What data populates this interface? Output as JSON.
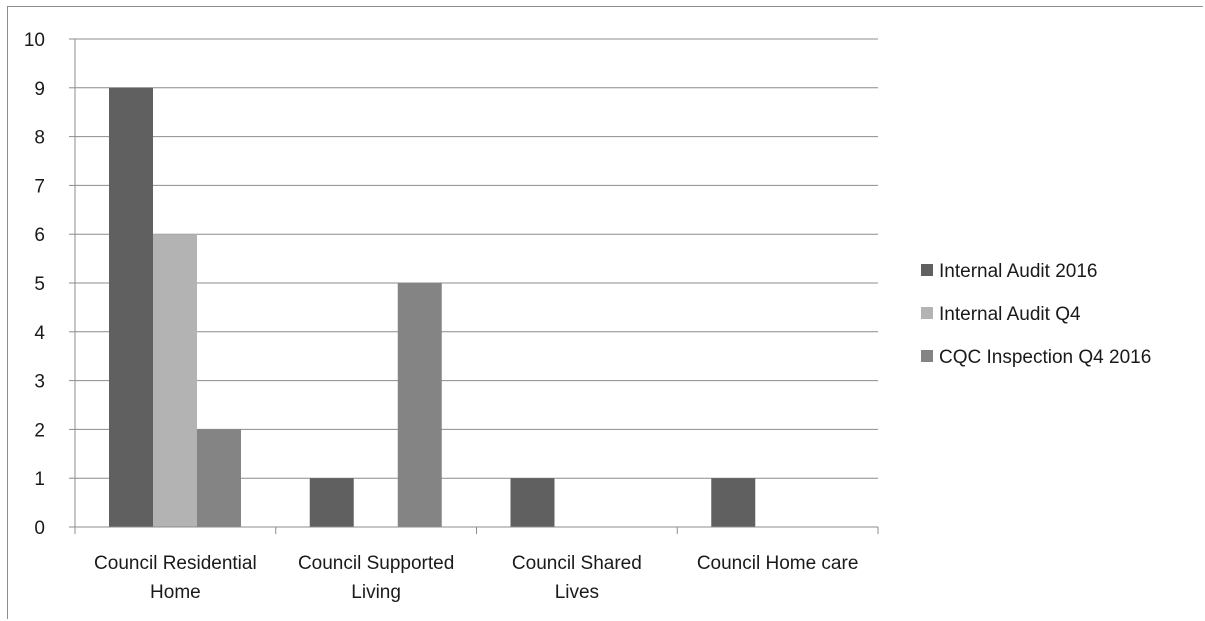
{
  "chart_data": {
    "type": "bar",
    "categories": [
      [
        "Council Residential",
        "Home"
      ],
      [
        "Council Supported",
        "Living"
      ],
      [
        "Council Shared",
        "Lives"
      ],
      [
        "Council Home care"
      ]
    ],
    "series": [
      {
        "name": "Internal Audit 2016",
        "color": "#606060",
        "values": [
          9,
          1,
          1,
          1
        ]
      },
      {
        "name": "Internal Audit Q4",
        "color": "#b3b3b3",
        "values": [
          6,
          0,
          0,
          0
        ]
      },
      {
        "name": "CQC Inspection Q4 2016",
        "color": "#848484",
        "values": [
          2,
          5,
          0,
          0
        ]
      }
    ],
    "y_ticks": [
      "0",
      "1",
      "2",
      "3",
      "4",
      "5",
      "6",
      "7",
      "8",
      "9",
      "10"
    ],
    "ylim": [
      0,
      10
    ],
    "grid": true,
    "legend_position": "right"
  }
}
